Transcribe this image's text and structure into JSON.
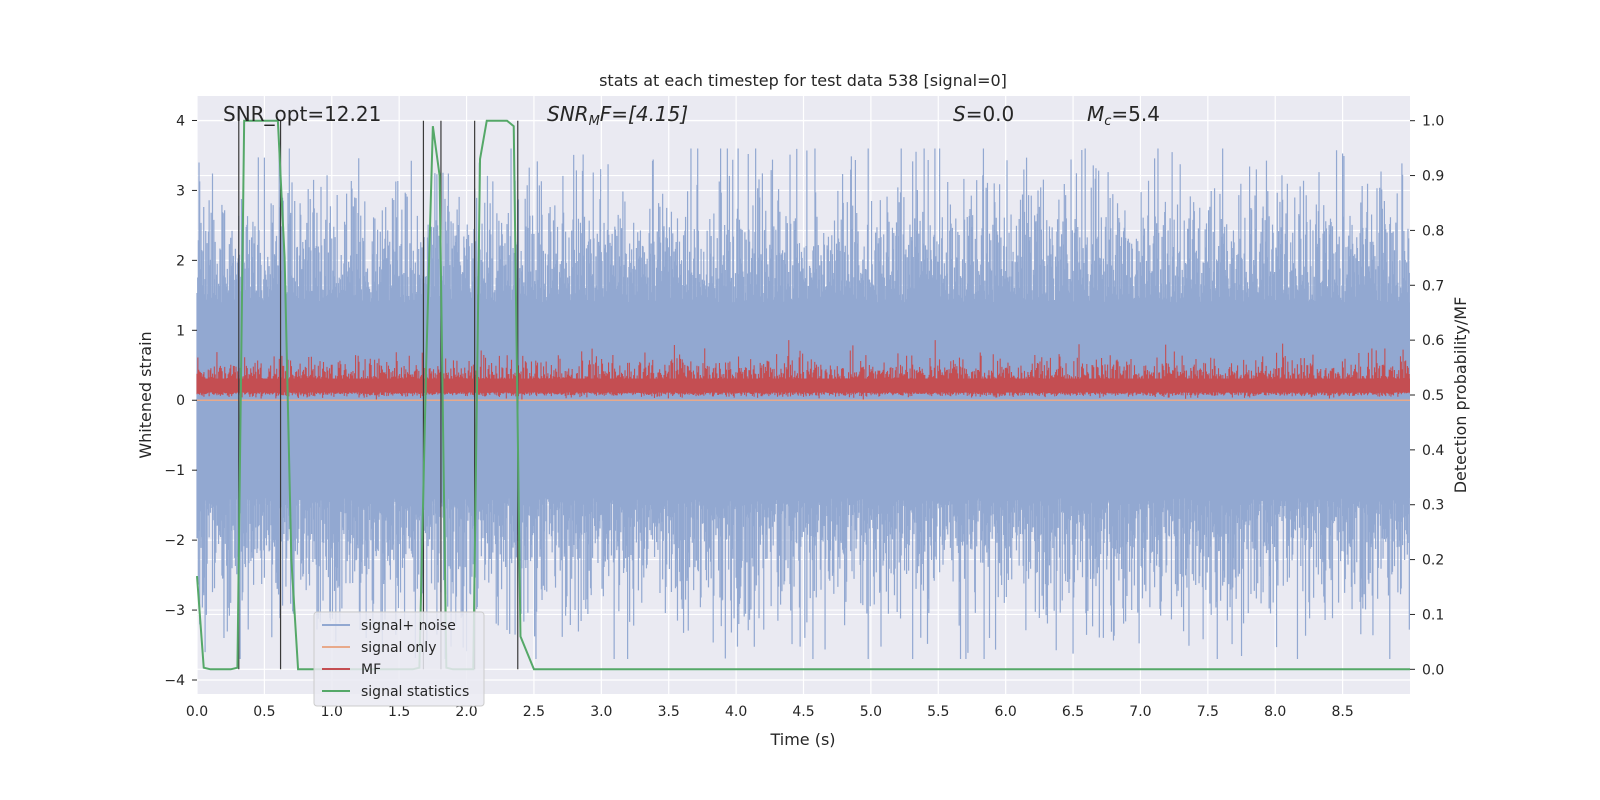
{
  "chart_data": {
    "type": "line",
    "title": "stats at each timestep for test data 538 [signal=0]",
    "xlabel": "Time (s)",
    "ylabel": "Whitened strain",
    "ylabel_right": "Detection probability/MF",
    "xlim": [
      0.0,
      9.0
    ],
    "ylim": [
      -4.2,
      4.35
    ],
    "ylim_right": [
      -0.045,
      1.045
    ],
    "xticks": [
      "0.0",
      "0.5",
      "1.0",
      "1.5",
      "2.0",
      "2.5",
      "3.0",
      "3.5",
      "4.0",
      "4.5",
      "5.0",
      "5.5",
      "6.0",
      "6.5",
      "7.0",
      "7.5",
      "8.0",
      "8.5"
    ],
    "yticks": [
      "4",
      "3",
      "2",
      "1",
      "0",
      "−1",
      "−2",
      "−3",
      "−4"
    ],
    "yticks_right": [
      "1.0",
      "0.9",
      "0.8",
      "0.7",
      "0.6",
      "0.5",
      "0.4",
      "0.3",
      "0.2",
      "0.1",
      "0.0"
    ],
    "annotations": {
      "snr_opt": "SNR_opt=12.21",
      "snr_mf_main": "SNR",
      "snr_mf_sub": "M",
      "snr_mf_rest": "F=[4.15]",
      "s_var": "S",
      "s_rest": "=0.0",
      "mc_main": "M",
      "mc_sub": "c",
      "mc_rest": "=5.4"
    },
    "legend_position": "lower-left",
    "grid": true,
    "series": [
      {
        "name": "signal+ noise",
        "color": "#92a8d1",
        "description_values": "whitened strain noise, approx ±2 to ±4 range around 0"
      },
      {
        "name": "signal only",
        "color": "#e8a98a",
        "values_constant": 0.0
      },
      {
        "name": "MF",
        "color": "#c44e52",
        "range_right": [
          0.5,
          0.6
        ]
      },
      {
        "name": "signal statistics",
        "color": "#55a868",
        "x": [
          0.0,
          0.05,
          0.1,
          0.15,
          0.2,
          0.25,
          0.3,
          0.35,
          0.4,
          0.45,
          0.5,
          0.55,
          0.6,
          0.65,
          0.7,
          0.75,
          0.8,
          0.85,
          0.9,
          0.95,
          1.0,
          1.05,
          1.1,
          1.15,
          1.2,
          1.25,
          1.3,
          1.35,
          1.4,
          1.45,
          1.5,
          1.55,
          1.6,
          1.65,
          1.7,
          1.75,
          1.8,
          1.85,
          1.9,
          1.95,
          2.0,
          2.05,
          2.1,
          2.15,
          2.2,
          2.25,
          2.3,
          2.35,
          2.4,
          2.45,
          2.5,
          3.0,
          4.0,
          5.0,
          6.0,
          7.0,
          8.0,
          9.0
        ],
        "y": [
          0.17,
          0.003,
          0.0,
          0.0,
          0.0,
          0.0,
          0.003,
          1.0,
          1.0,
          1.0,
          1.0,
          1.0,
          1.0,
          0.75,
          0.2,
          0.0,
          0.0,
          0.0,
          0.0,
          0.0,
          0.0,
          0.0,
          0.0,
          0.0,
          0.0,
          0.0,
          0.0,
          0.0,
          0.0,
          0.0,
          0.0,
          0.0,
          0.0,
          0.003,
          0.55,
          0.99,
          0.9,
          0.003,
          0.0,
          0.0,
          0.0,
          0.0,
          0.93,
          1.0,
          1.0,
          1.0,
          1.0,
          0.99,
          0.06,
          0.03,
          0.0,
          0.0,
          0.0,
          0.0,
          0.0,
          0.0,
          0.0,
          0.0
        ]
      }
    ],
    "vertical_lines_x": [
      0.31,
      0.62,
      1.68,
      1.81,
      2.06,
      2.38
    ],
    "colors": {
      "plot_bg": "#eaeaf2",
      "grid": "#ffffff",
      "vline": "#3a3a3a"
    }
  }
}
